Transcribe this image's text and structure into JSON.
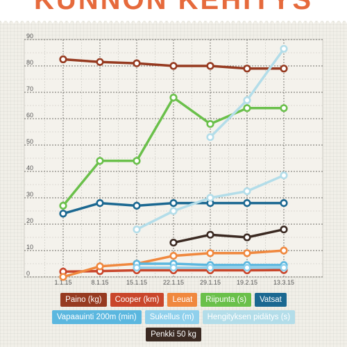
{
  "header": {
    "title": "KUNNON KEHITYS"
  },
  "chart_data": {
    "type": "line",
    "title": "KUNNON KEHITYS",
    "categories": [
      "1.1.15",
      "8.1.15",
      "15.1.15",
      "22.1.15",
      "29.1.15",
      "19.2.15",
      "13.3.15"
    ],
    "y_ticks": [
      0,
      10,
      20,
      30,
      40,
      50,
      60,
      70,
      80,
      90
    ],
    "ylim": [
      0,
      90
    ],
    "grid": true,
    "legend_position": "bottom",
    "series": [
      {
        "name": "Paino (kg)",
        "color": "#963a20",
        "values": [
          82.5,
          81.5,
          81,
          80,
          80,
          79,
          79
        ]
      },
      {
        "name": "Cooper (km)",
        "color": "#c9462b",
        "values": [
          2,
          2.2,
          2.5,
          2.5,
          2.5,
          2.5,
          2.6
        ]
      },
      {
        "name": "Leuat",
        "color": "#f0883e",
        "values": [
          0,
          4,
          5,
          8,
          9,
          9,
          10
        ]
      },
      {
        "name": "Riipunta (s)",
        "color": "#6ac04a",
        "values": [
          27,
          44,
          44,
          68,
          58,
          64,
          64
        ]
      },
      {
        "name": "Vatsat",
        "color": "#1b6891",
        "values": [
          24,
          28,
          27,
          28,
          28,
          28,
          28
        ]
      },
      {
        "name": "Vapaauinti 200m (min)",
        "color": "#5bb7df",
        "values": [
          null,
          null,
          5,
          5,
          4.5,
          4.5,
          4.5
        ]
      },
      {
        "name": "Sukellus (m)",
        "color": "#8fd0ec",
        "values": [
          null,
          null,
          3.5,
          3.5,
          3.5,
          3.5,
          3.5
        ]
      },
      {
        "name": "Hengityksen pidätys (s)",
        "color": "#b3dde9",
        "values": [
          null,
          null,
          18,
          25,
          30,
          32.5,
          38.5
        ]
      },
      {
        "name": "Hengityksen pidätys (s)",
        "color": "#b3dde9",
        "values": [
          null,
          null,
          null,
          null,
          53,
          67,
          86.5
        ]
      },
      {
        "name": "Penkki 50 kg",
        "color": "#3b2a22",
        "values": [
          null,
          null,
          null,
          13,
          16,
          15,
          18
        ]
      }
    ]
  },
  "legend": {
    "rows": [
      [
        {
          "label": "Paino (kg)",
          "color": "#963a20"
        },
        {
          "label": "Cooper (km)",
          "color": "#c9462b"
        },
        {
          "label": "Leuat",
          "color": "#f0883e"
        },
        {
          "label": "Riipunta (s)",
          "color": "#6ac04a"
        },
        {
          "label": "Vatsat",
          "color": "#1b6891"
        }
      ],
      [
        {
          "label": "Vapaauinti 200m (min)",
          "color": "#5bb7df"
        },
        {
          "label": "Sukellus (m)",
          "color": "#8fd0ec"
        },
        {
          "label": "Hengityksen pidätys (s)",
          "color": "#b3dde9"
        }
      ],
      [
        {
          "label": "Penkki 50 kg",
          "color": "#3b2a22"
        }
      ]
    ]
  }
}
